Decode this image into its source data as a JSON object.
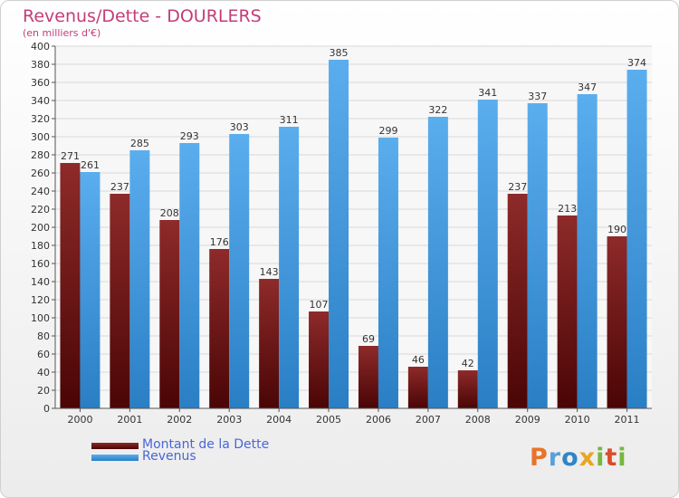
{
  "chart_data": {
    "type": "bar",
    "title": "Revenus/Dette - DOURLERS",
    "subtitle": "(en milliers d'€)",
    "categories": [
      "2000",
      "2001",
      "2002",
      "2003",
      "2004",
      "2005",
      "2006",
      "2007",
      "2008",
      "2009",
      "2010",
      "2011"
    ],
    "series": [
      {
        "name": "Montant de la Dette",
        "values": [
          271,
          237,
          208,
          176,
          143,
          107,
          69,
          46,
          42,
          237,
          213,
          190
        ],
        "color": "#7a1a1a"
      },
      {
        "name": "Revenus",
        "values": [
          261,
          285,
          293,
          303,
          311,
          385,
          299,
          322,
          341,
          337,
          347,
          374
        ],
        "color": "#4a9fe0"
      }
    ],
    "ylim": [
      0,
      400
    ],
    "ytick_step": 20,
    "grid": true,
    "legend_position": "bottom-left"
  },
  "logo": {
    "text": "Proxiti"
  }
}
